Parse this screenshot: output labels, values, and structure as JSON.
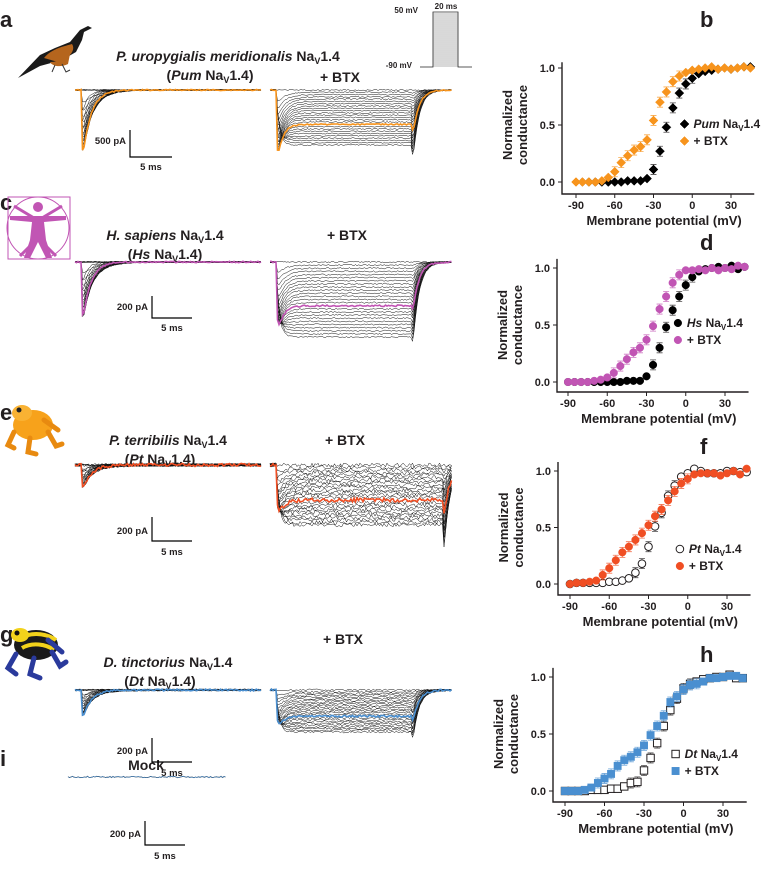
{
  "panel_letters": [
    "a",
    "b",
    "c",
    "d",
    "e",
    "f",
    "g",
    "h",
    "i"
  ],
  "channel": {
    "base": "Na",
    "sub": "V",
    "suffix": "1.4"
  },
  "btx_label": "+ BTX",
  "protocol": {
    "top_voltage": "50 mV",
    "bottom_voltage": "-90 mV",
    "duration": "20 ms"
  },
  "panels": [
    {
      "species": "P. uropygialis meridionalis",
      "abbrev": "Pum",
      "scale_current": "500 pA",
      "scale_time": "5 ms",
      "trace_color": "#f7941d"
    },
    {
      "species": "H. sapiens",
      "abbrev": "Hs",
      "scale_current": "200 pA",
      "scale_time": "5 ms",
      "trace_color": "#c155b4"
    },
    {
      "species": "P. terribilis",
      "abbrev": "Pt",
      "scale_current": "200 pA",
      "scale_time": "5 ms",
      "trace_color": "#f04e23"
    },
    {
      "species": "D. tinctorius",
      "abbrev": "Dt",
      "scale_current": "200 pA",
      "scale_time": "5 ms",
      "trace_color": "#4a8fd0"
    }
  ],
  "mock": {
    "label": "Mock",
    "scale_current": "200 pA",
    "scale_time": "5 ms"
  },
  "chart_data": [
    {
      "type": "scatter",
      "panel": "b",
      "xlabel": "Membrane potential (mV)",
      "ylabel": [
        "Normalized",
        "conductance"
      ],
      "xticks": [
        "-90",
        "-60",
        "-30",
        "0",
        "30"
      ],
      "yticks": [
        "0.0",
        "0.5",
        "1.0"
      ],
      "xlim": [
        -95,
        48
      ],
      "ylim": [
        0,
        1.05
      ],
      "legend": "right",
      "x": [
        -90,
        -85,
        -80,
        -75,
        -70,
        -65,
        -60,
        -55,
        -50,
        -45,
        -40,
        -35,
        -30,
        -25,
        -20,
        -15,
        -10,
        -5,
        0,
        5,
        10,
        15,
        20,
        25,
        30,
        35,
        40,
        45
      ],
      "series": [
        {
          "name": "Pum NaV1.4",
          "legend_italic": "Pum",
          "marker": "diamond",
          "filled": true,
          "color": "#000000",
          "values": [
            0,
            0,
            0,
            0,
            0,
            0,
            0,
            0,
            0.01,
            0.01,
            0.01,
            0.03,
            0.11,
            0.27,
            0.48,
            0.65,
            0.78,
            0.86,
            0.91,
            0.95,
            0.97,
            0.98,
            0.99,
            1.0,
            0.99,
            1.0,
            1.01,
            1.01
          ]
        },
        {
          "name": "+ BTX",
          "marker": "diamond",
          "filled": true,
          "color": "#f7941d",
          "values": [
            0,
            0,
            0,
            0,
            0.01,
            0.04,
            0.09,
            0.17,
            0.23,
            0.28,
            0.31,
            0.37,
            0.54,
            0.7,
            0.79,
            0.88,
            0.93,
            0.96,
            0.98,
            0.99,
            1.0,
            1.01,
            0.99,
            1.0,
            0.99,
            1.0,
            1.01,
            1.0
          ]
        }
      ]
    },
    {
      "type": "scatter",
      "panel": "d",
      "xlabel": "Membrane potential (mV)",
      "ylabel": [
        "Normalized",
        "conductance"
      ],
      "xticks": [
        "-90",
        "-60",
        "-30",
        "0",
        "30"
      ],
      "yticks": [
        "0.0",
        "0.5",
        "1.0"
      ],
      "xlim": [
        -95,
        48
      ],
      "ylim": [
        0,
        1.08
      ],
      "legend": "right",
      "x": [
        -90,
        -85,
        -80,
        -75,
        -70,
        -65,
        -60,
        -55,
        -50,
        -45,
        -40,
        -35,
        -30,
        -25,
        -20,
        -15,
        -10,
        -5,
        0,
        5,
        10,
        15,
        20,
        25,
        30,
        35,
        40,
        45
      ],
      "series": [
        {
          "name": "Hs NaV1.4",
          "legend_italic": "Hs",
          "marker": "circle",
          "filled": true,
          "color": "#000000",
          "values": [
            0,
            0,
            0,
            0,
            0,
            0,
            0,
            0,
            0,
            0.01,
            0.01,
            0.01,
            0.05,
            0.15,
            0.3,
            0.48,
            0.63,
            0.75,
            0.85,
            0.92,
            0.97,
            0.99,
            1.0,
            1.01,
            1.0,
            1.02,
            0.99,
            1.01
          ]
        },
        {
          "name": "+ BTX",
          "marker": "circle",
          "filled": true,
          "color": "#c155b4",
          "values": [
            0,
            0,
            0,
            0,
            0.01,
            0.02,
            0.04,
            0.08,
            0.14,
            0.2,
            0.26,
            0.3,
            0.37,
            0.49,
            0.64,
            0.75,
            0.87,
            0.94,
            0.98,
            0.98,
            0.99,
            0.98,
            1.0,
            0.98,
            1.0,
            0.99,
            1.02,
            1.01
          ]
        }
      ]
    },
    {
      "type": "scatter",
      "panel": "f",
      "xlabel": "Membrane potential (mV)",
      "ylabel": [
        "Normalized",
        "conductance"
      ],
      "xticks": [
        "-90",
        "-60",
        "-30",
        "0",
        "30"
      ],
      "yticks": [
        "0.0",
        "0.5",
        "1.0"
      ],
      "xlim": [
        -95,
        48
      ],
      "ylim": [
        0,
        1.08
      ],
      "legend": "right",
      "x": [
        -90,
        -85,
        -80,
        -75,
        -70,
        -65,
        -60,
        -55,
        -50,
        -45,
        -40,
        -35,
        -30,
        -25,
        -20,
        -15,
        -10,
        -5,
        0,
        5,
        10,
        15,
        20,
        25,
        30,
        35,
        40,
        45
      ],
      "series": [
        {
          "name": "Pt NaV1.4",
          "legend_italic": "Pt",
          "marker": "circle",
          "filled": false,
          "color": "#000000",
          "values": [
            0,
            0.01,
            0.01,
            0.01,
            0.01,
            0.01,
            0.02,
            0.02,
            0.03,
            0.05,
            0.1,
            0.18,
            0.33,
            0.51,
            0.63,
            0.78,
            0.87,
            0.95,
            0.98,
            1.02,
            1.0,
            0.98,
            0.98,
            0.98,
            1.0,
            1.0,
            0.99,
            0.99
          ]
        },
        {
          "name": "+ BTX",
          "marker": "circle",
          "filled": true,
          "color": "#f04e23",
          "values": [
            0,
            0.01,
            0.01,
            0.02,
            0.03,
            0.08,
            0.14,
            0.21,
            0.28,
            0.33,
            0.39,
            0.45,
            0.52,
            0.6,
            0.66,
            0.74,
            0.82,
            0.89,
            0.93,
            0.97,
            0.98,
            0.98,
            0.98,
            0.96,
            0.98,
            1.0,
            0.97,
            1.02
          ]
        }
      ]
    },
    {
      "type": "scatter",
      "panel": "h",
      "xlabel": "Membrane potential (mV)",
      "ylabel": [
        "Normalized",
        "conductance"
      ],
      "xticks": [
        "-90",
        "-60",
        "-30",
        "0",
        "30"
      ],
      "yticks": [
        "0.0",
        "0.5",
        "1.0"
      ],
      "xlim": [
        -95,
        48
      ],
      "ylim": [
        0,
        1.08
      ],
      "legend": "right",
      "x": [
        -90,
        -85,
        -80,
        -75,
        -70,
        -65,
        -60,
        -55,
        -50,
        -45,
        -40,
        -35,
        -30,
        -25,
        -20,
        -15,
        -10,
        -5,
        0,
        5,
        10,
        15,
        20,
        25,
        30,
        35,
        40,
        45
      ],
      "series": [
        {
          "name": "Dt NaV1.4",
          "legend_italic": "Dt",
          "marker": "square",
          "filled": false,
          "color": "#000000",
          "values": [
            0,
            0,
            0,
            0,
            0.01,
            0.01,
            0.01,
            0.02,
            0.02,
            0.04,
            0.07,
            0.08,
            0.18,
            0.29,
            0.42,
            0.57,
            0.71,
            0.81,
            0.9,
            0.94,
            0.96,
            0.98,
            0.99,
            1.0,
            1.0,
            1.02,
            0.99,
            0.99
          ]
        },
        {
          "name": "+ BTX",
          "marker": "square",
          "filled": true,
          "color": "#4a8fd0",
          "values": [
            0,
            0,
            0,
            0.01,
            0.03,
            0.07,
            0.11,
            0.15,
            0.22,
            0.27,
            0.3,
            0.34,
            0.4,
            0.49,
            0.57,
            0.66,
            0.78,
            0.83,
            0.89,
            0.93,
            0.94,
            0.96,
            0.99,
            0.99,
            1.0,
            1.01,
            1.01,
            0.99
          ]
        }
      ]
    }
  ]
}
